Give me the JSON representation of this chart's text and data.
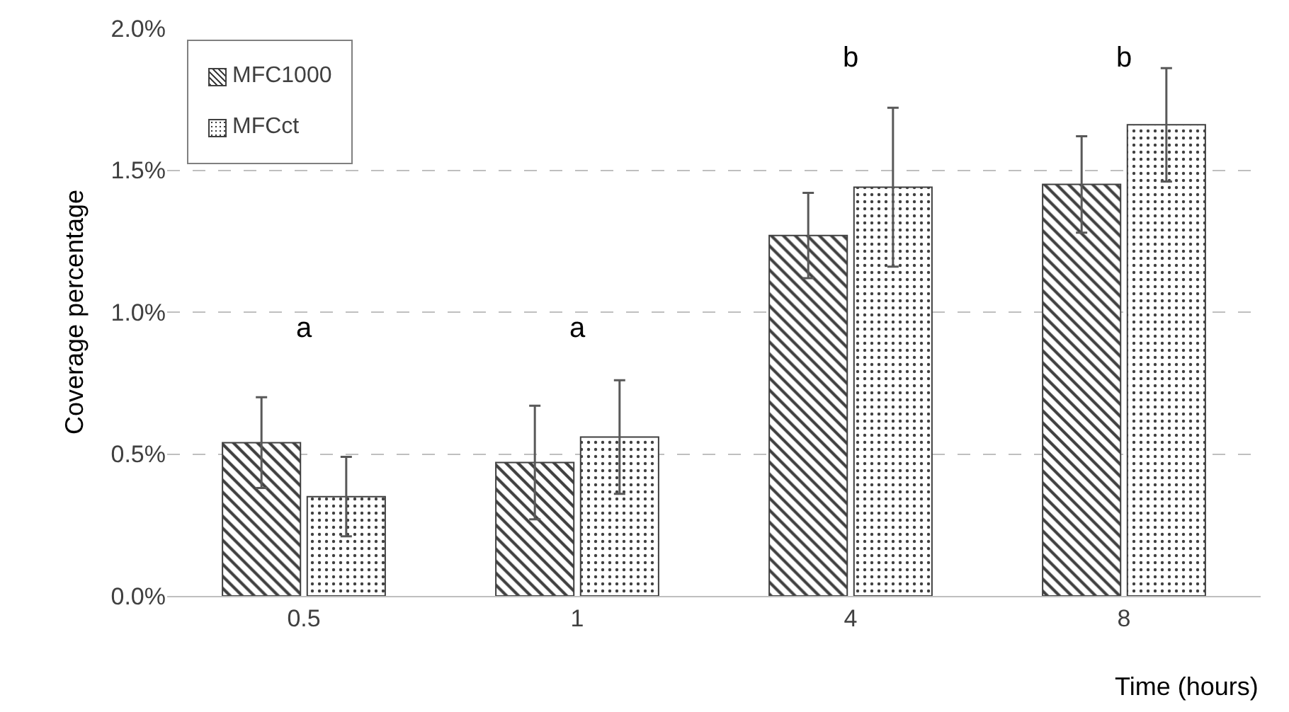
{
  "chart_data": {
    "type": "bar",
    "xlabel": "Time (hours)",
    "ylabel": "Coverage percentage",
    "categories": [
      "0.5",
      "1",
      "4",
      "8"
    ],
    "series": [
      {
        "name": "MFC1000",
        "color": "#404040",
        "values": [
          0.54,
          0.47,
          1.27,
          1.45
        ],
        "errors": [
          0.16,
          0.2,
          0.15,
          0.17
        ]
      },
      {
        "name": "MFCct",
        "color": "#404040",
        "values": [
          0.35,
          0.56,
          1.44,
          1.66
        ],
        "errors": [
          0.14,
          0.2,
          0.28,
          0.2
        ]
      }
    ],
    "ylim": [
      0,
      2
    ],
    "yticks": [
      {
        "value": 0,
        "label": "0.0%"
      },
      {
        "value": 0.5,
        "label": "0.5%"
      },
      {
        "value": 1,
        "label": "1.0%"
      },
      {
        "value": 1.5,
        "label": "1.5%"
      },
      {
        "value": 2,
        "label": "2.0%"
      }
    ],
    "grid": "y",
    "legend": "top left",
    "annotations": [
      "a",
      "a",
      "b",
      "b"
    ]
  }
}
